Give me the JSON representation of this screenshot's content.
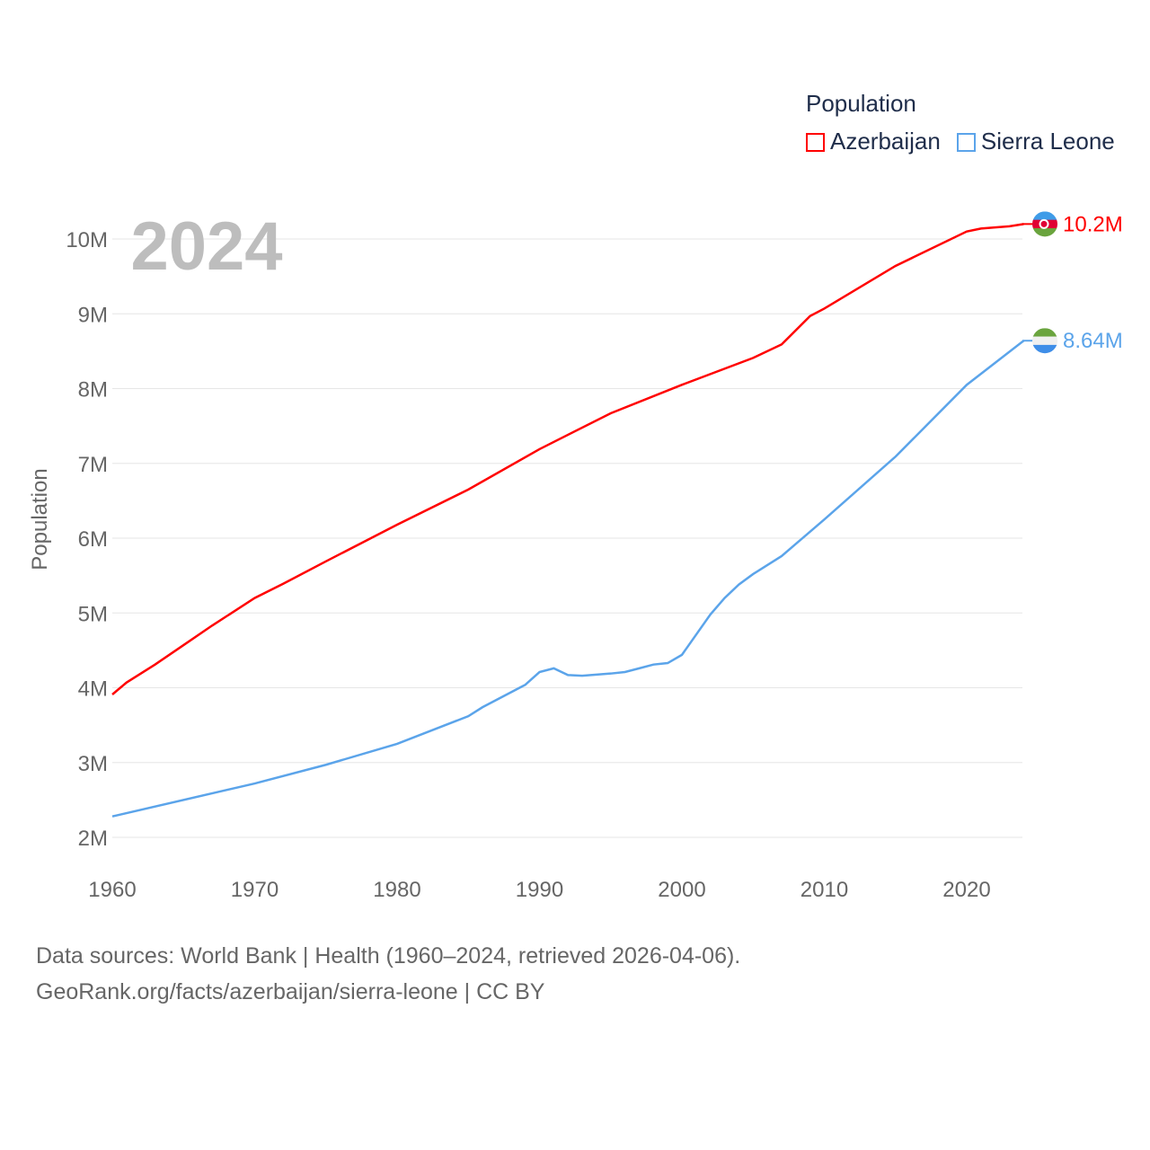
{
  "chart_data": {
    "type": "line",
    "title": "Population",
    "year_label": "2024",
    "ylabel": "Population",
    "xlabel": "",
    "xlim": [
      1960,
      2024
    ],
    "ylim": [
      2000000,
      10000000
    ],
    "x_ticks": [
      "1960",
      "1970",
      "1980",
      "1990",
      "2000",
      "2010",
      "2020"
    ],
    "y_ticks": [
      "2M",
      "3M",
      "4M",
      "5M",
      "6M",
      "7M",
      "8M",
      "9M",
      "10M"
    ],
    "grid": true,
    "legend_position": "top-right",
    "series": [
      {
        "name": "Azerbaijan",
        "color": "#ff0000",
        "end_label": "10.2M",
        "x": [
          1960,
          1961,
          1963,
          1965,
          1967,
          1970,
          1972,
          1975,
          1980,
          1985,
          1990,
          1995,
          2000,
          2005,
          2007,
          2009,
          2010,
          2015,
          2020,
          2021,
          2023,
          2024
        ],
        "values": [
          3.91,
          4.07,
          4.31,
          4.57,
          4.83,
          5.2,
          5.39,
          5.69,
          6.18,
          6.65,
          7.19,
          7.67,
          8.05,
          8.41,
          8.59,
          8.97,
          9.07,
          9.64,
          10.1,
          10.14,
          10.17,
          10.2
        ]
      },
      {
        "name": "Sierra Leone",
        "color": "#5ba4ea",
        "end_label": "8.64M",
        "x": [
          1960,
          1970,
          1975,
          1980,
          1985,
          1986,
          1989,
          1990,
          1991,
          1992,
          1993,
          1995,
          1996,
          1997,
          1998,
          1999,
          2000,
          2002,
          2003,
          2004,
          2005,
          2007,
          2010,
          2015,
          2020,
          2024
        ],
        "values": [
          2.28,
          2.72,
          2.97,
          3.25,
          3.62,
          3.74,
          4.04,
          4.21,
          4.26,
          4.17,
          4.16,
          4.19,
          4.21,
          4.26,
          4.31,
          4.33,
          4.44,
          4.98,
          5.2,
          5.38,
          5.52,
          5.76,
          6.25,
          7.09,
          8.05,
          8.64
        ]
      }
    ]
  },
  "footer": {
    "line1": "Data sources: World Bank | Health (1960–2024, retrieved 2026-04-06).",
    "line2": "GeoRank.org/facts/azerbaijan/sierra-leone | CC BY"
  }
}
